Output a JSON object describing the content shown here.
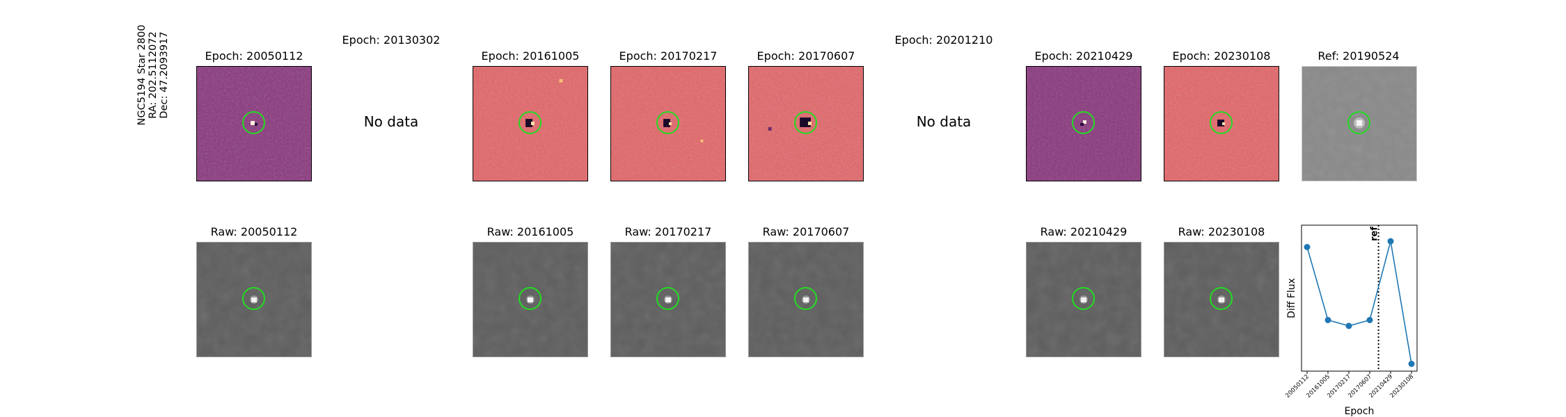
{
  "star_label": {
    "line1": "NGC5194 Star 2800",
    "line2": "RA: 202.5112072",
    "line3": "Dec: 47.2093917"
  },
  "top_row": [
    {
      "title": "Epoch: 20050112",
      "has_data": true,
      "colormap": "magma-dark"
    },
    {
      "title": "Epoch: 20130302",
      "has_data": false,
      "nodata_text": "No data"
    },
    {
      "title": "Epoch: 20161005",
      "has_data": true,
      "colormap": "magma-bright"
    },
    {
      "title": "Epoch: 20170217",
      "has_data": true,
      "colormap": "magma-bright"
    },
    {
      "title": "Epoch: 20170607",
      "has_data": true,
      "colormap": "magma-bright"
    },
    {
      "title": "Epoch: 20201210",
      "has_data": false,
      "nodata_text": "No data"
    },
    {
      "title": "Epoch: 20210429",
      "has_data": true,
      "colormap": "magma-dark"
    },
    {
      "title": "Epoch: 20230108",
      "has_data": true,
      "colormap": "magma-bright"
    },
    {
      "title": "Ref: 20190524",
      "has_data": true,
      "colormap": "gray"
    }
  ],
  "bottom_row": [
    {
      "title": "Raw: 20050112"
    },
    {
      "title": "Raw: 20161005"
    },
    {
      "title": "Raw: 20170217"
    },
    {
      "title": "Raw: 20170607"
    },
    {
      "title": "Raw: 20210429"
    },
    {
      "title": "Raw: 20230108"
    }
  ],
  "colors": {
    "magma_dark": "#8a3a7e",
    "magma_bright": "#e26669",
    "gray": "#888888",
    "raw_gray": "#5e5e5e",
    "marker_circle": "#22dd22",
    "series_line": "#1f77b4"
  },
  "chart_data": {
    "type": "line",
    "xlabel": "Epoch",
    "ylabel": "Diff Flux",
    "categories": [
      "20050112",
      "20161005",
      "20170217",
      "20170607",
      "20210429",
      "20230108"
    ],
    "values": [
      0.85,
      0.35,
      0.31,
      0.35,
      0.89,
      0.05
    ],
    "ylim": [
      0.0,
      1.0
    ],
    "ref_line": {
      "position_between": [
        3,
        4
      ],
      "fraction": 0.42,
      "label": "ref",
      "style": "dotted"
    },
    "grid": false,
    "legend": "none"
  }
}
